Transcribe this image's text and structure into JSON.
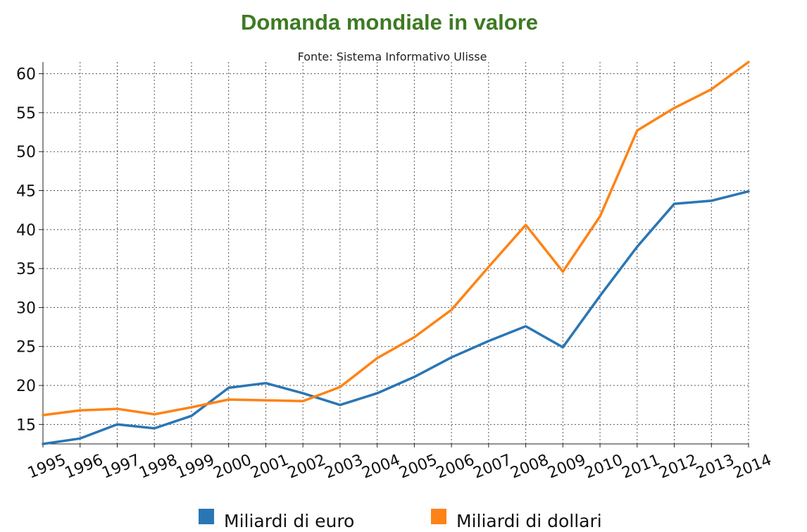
{
  "chart_data": {
    "type": "line",
    "title": "Domanda mondiale in valore",
    "subtitle": "Fonte: Sistema Informativo Ulisse",
    "xlabel": "",
    "ylabel": "",
    "x": [
      "1995",
      "1996",
      "1997",
      "1998",
      "1999",
      "2000",
      "2001",
      "2002",
      "2003",
      "2004",
      "2005",
      "2006",
      "2007",
      "2008",
      "2009",
      "2010",
      "2011",
      "2012",
      "2013",
      "2014"
    ],
    "y_ticks": [
      15,
      20,
      25,
      30,
      35,
      40,
      45,
      50,
      55,
      60
    ],
    "ylim": [
      12.5,
      61.5
    ],
    "grid": true,
    "legend_position": "bottom",
    "series": [
      {
        "name": "Miliardi di euro",
        "color": "#2a76b4",
        "values": [
          12.5,
          13.2,
          15.0,
          14.5,
          16.1,
          19.7,
          20.3,
          19.0,
          17.5,
          19.0,
          21.1,
          23.6,
          25.7,
          27.6,
          24.9,
          31.5,
          37.8,
          43.3,
          43.7,
          44.9
        ]
      },
      {
        "name": "Miliardi di dollari",
        "color": "#fd8316",
        "values": [
          16.2,
          16.8,
          17.0,
          16.3,
          17.2,
          18.2,
          18.1,
          18.0,
          19.8,
          23.5,
          26.2,
          29.7,
          35.2,
          40.6,
          34.6,
          41.7,
          52.7,
          55.6,
          58.0,
          61.5
        ]
      }
    ]
  }
}
